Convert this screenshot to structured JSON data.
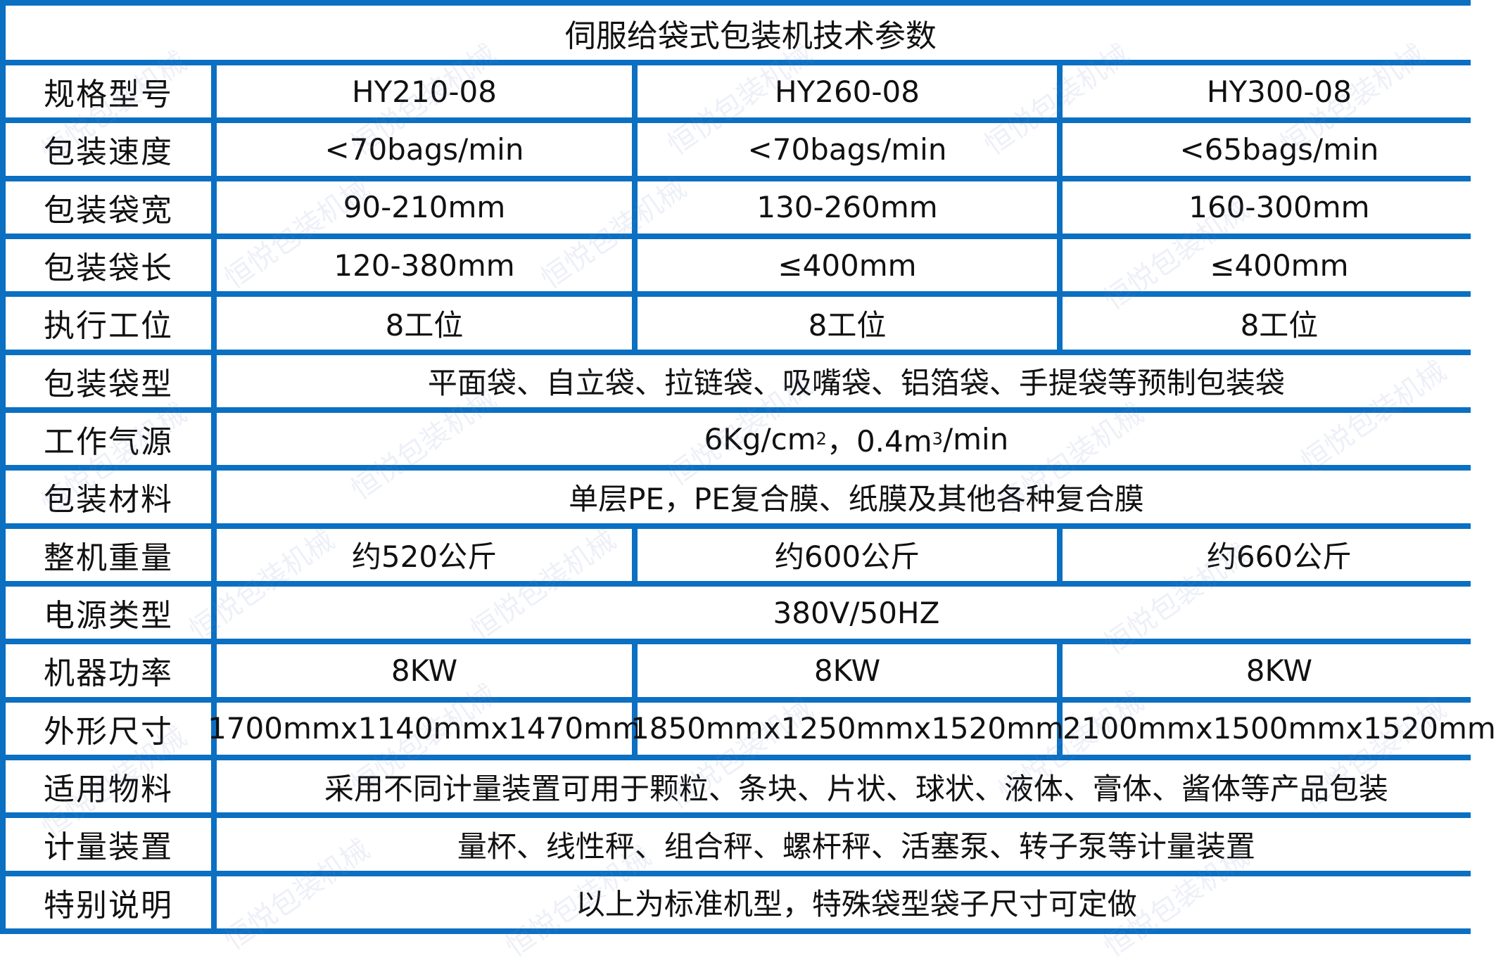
{
  "title": "伺服给袋式包装机技术参数",
  "watermark": "恒悦包装机械",
  "border_color": "#0b6fc2",
  "rows": [
    {
      "label": "规格型号",
      "values": [
        "HY210-08",
        "HY260-08",
        "HY300-08"
      ]
    },
    {
      "label": "包装速度",
      "values": [
        "<70bags/min",
        "<70bags/min",
        "<65bags/min"
      ]
    },
    {
      "label": "包装袋宽",
      "values": [
        "90-210mm",
        "130-260mm",
        "160-300mm"
      ]
    },
    {
      "label": "包装袋长",
      "values": [
        "120-380mm",
        "≤400mm",
        "≤400mm"
      ]
    },
    {
      "label": "执行工位",
      "values": [
        "8工位",
        "8工位",
        "8工位"
      ]
    },
    {
      "label": "包装袋型",
      "value": "平面袋、自立袋、拉链袋、吸嘴袋、铝箔袋、手提袋等预制包装袋"
    },
    {
      "label": "工作气源",
      "value_a": "6Kg/cm",
      "sup_a": "2",
      "value_b": "，0.4m",
      "sup_b": "3",
      "value_c": "/min"
    },
    {
      "label": "包装材料",
      "value": "单层PE，PE复合膜、纸膜及其他各种复合膜"
    },
    {
      "label": "整机重量",
      "values": [
        "约520公斤",
        "约600公斤",
        "约660公斤"
      ]
    },
    {
      "label": "电源类型",
      "value": "380V/50HZ"
    },
    {
      "label": "机器功率",
      "values": [
        "8KW",
        "8KW",
        "8KW"
      ]
    },
    {
      "label": "外形尺寸",
      "values": [
        "1700mmx1140mmx1470mm",
        "1850mmx1250mmx1520mm",
        "2100mmx1500mmx1520mm"
      ]
    },
    {
      "label": "适用物料",
      "value": "采用不同计量装置可用于颗粒、条块、片状、球状、液体、膏体、酱体等产品包装"
    },
    {
      "label": "计量装置",
      "value": "量杯、线性秤、组合秤、螺杆秤、活塞泵、转子泵等计量装置"
    },
    {
      "label": "特别说明",
      "value": "以上为标准机型，特殊袋型袋子尺寸可定做"
    }
  ]
}
